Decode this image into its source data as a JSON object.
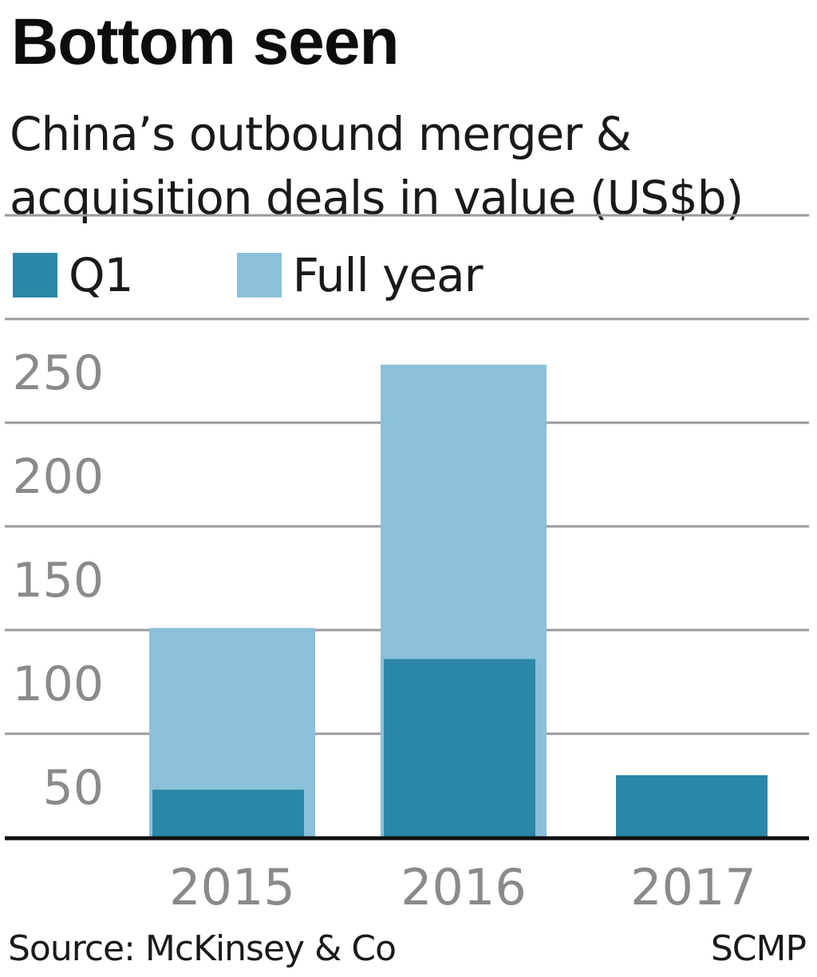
{
  "header": {
    "title": "Bottom seen",
    "subtitle": "China’s outbound merger & acquisition deals in value (US$b)"
  },
  "legend": {
    "items": [
      {
        "label": "Q1",
        "color": "#2b87a8"
      },
      {
        "label": "Full year",
        "color": "#8bc0da"
      }
    ]
  },
  "footer": {
    "source": "Source: McKinsey & Co",
    "credit": "SCMP"
  },
  "chart_data": {
    "type": "bar",
    "categories": [
      "2015",
      "2016",
      "2017"
    ],
    "series": [
      {
        "name": "Full year",
        "values": [
          101,
          228,
          null
        ],
        "color": "#8bc0da"
      },
      {
        "name": "Q1",
        "values": [
          23,
          86,
          30
        ],
        "color": "#2b87a8"
      }
    ],
    "yticks": [
      50,
      100,
      150,
      200,
      250
    ],
    "ylim": [
      0,
      250
    ],
    "grid": true,
    "legend_position": "top-left",
    "axis_color": "#111111",
    "grid_color": "#9a9a9a",
    "tick_label_color": "#8a8a8a"
  }
}
